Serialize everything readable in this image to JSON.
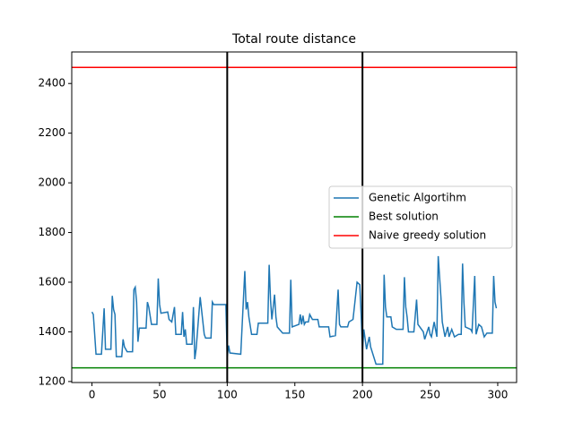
{
  "chart_data": {
    "type": "line",
    "title": "Total route distance",
    "x": [
      0,
      1,
      3,
      7,
      9,
      10,
      14,
      15,
      16,
      17,
      18,
      22,
      23,
      24,
      26,
      30,
      31,
      32,
      33,
      34,
      35,
      40,
      41,
      42,
      44,
      48,
      49,
      50,
      51,
      56,
      57,
      59,
      61,
      62,
      66,
      67,
      68,
      69,
      70,
      74,
      75,
      76,
      77,
      80,
      81,
      83,
      84,
      88,
      89,
      90,
      99,
      100,
      101,
      102,
      110,
      113,
      114,
      115,
      116,
      118,
      122,
      123,
      130,
      131,
      132,
      133,
      135,
      136,
      137,
      141,
      146,
      147,
      148,
      153,
      154,
      155,
      156,
      157,
      158,
      160,
      161,
      163,
      167,
      168,
      175,
      176,
      180,
      182,
      183,
      184,
      189,
      190,
      193,
      196,
      198,
      199,
      200,
      201,
      203,
      205,
      206,
      210,
      215,
      216,
      217,
      218,
      221,
      222,
      225,
      230,
      231,
      232,
      233,
      234,
      238,
      240,
      241,
      245,
      246,
      249,
      250,
      251,
      253,
      255,
      256,
      258,
      259,
      261,
      263,
      264,
      266,
      268,
      271,
      273,
      274,
      275,
      276,
      280,
      281,
      283,
      284,
      286,
      288,
      290,
      292,
      296,
      297,
      298,
      299
    ],
    "series": [
      {
        "name": "Genetic Algortihm",
        "color": "#1f77b4",
        "values": [
          1480,
          1470,
          1310,
          1310,
          1495,
          1330,
          1330,
          1545,
          1490,
          1470,
          1300,
          1300,
          1370,
          1340,
          1320,
          1320,
          1570,
          1580,
          1520,
          1360,
          1415,
          1415,
          1520,
          1500,
          1430,
          1430,
          1615,
          1510,
          1475,
          1480,
          1450,
          1440,
          1500,
          1390,
          1390,
          1480,
          1380,
          1410,
          1350,
          1350,
          1500,
          1290,
          1330,
          1540,
          1490,
          1390,
          1375,
          1375,
          1520,
          1510,
          1510,
          1300,
          1345,
          1315,
          1310,
          1645,
          1490,
          1520,
          1460,
          1390,
          1390,
          1435,
          1435,
          1670,
          1530,
          1450,
          1550,
          1460,
          1420,
          1395,
          1395,
          1610,
          1420,
          1430,
          1470,
          1430,
          1465,
          1430,
          1440,
          1440,
          1470,
          1450,
          1450,
          1420,
          1420,
          1380,
          1385,
          1570,
          1430,
          1420,
          1420,
          1440,
          1450,
          1600,
          1590,
          1470,
          1320,
          1410,
          1330,
          1380,
          1340,
          1270,
          1270,
          1630,
          1500,
          1460,
          1460,
          1420,
          1410,
          1410,
          1620,
          1500,
          1460,
          1400,
          1400,
          1530,
          1430,
          1400,
          1370,
          1420,
          1390,
          1380,
          1440,
          1380,
          1705,
          1540,
          1440,
          1380,
          1420,
          1380,
          1410,
          1380,
          1390,
          1390,
          1675,
          1520,
          1420,
          1410,
          1400,
          1625,
          1390,
          1430,
          1420,
          1380,
          1395,
          1395,
          1625,
          1520,
          1495
        ]
      },
      {
        "name": "Best solution",
        "color": "#008000",
        "y": 1255
      },
      {
        "name": "Naive greedy solution",
        "color": "#ff0000",
        "y": 2465
      }
    ],
    "vlines": [
      100,
      200
    ],
    "vline_color": "#000000",
    "xlim": [
      -14.95,
      313.95
    ],
    "ylim": [
      1196,
      2527
    ],
    "xticks": [
      0,
      50,
      100,
      150,
      200,
      250,
      300
    ],
    "yticks": [
      1200,
      1400,
      1600,
      1800,
      2000,
      2200,
      2400
    ],
    "legend": "center right"
  }
}
